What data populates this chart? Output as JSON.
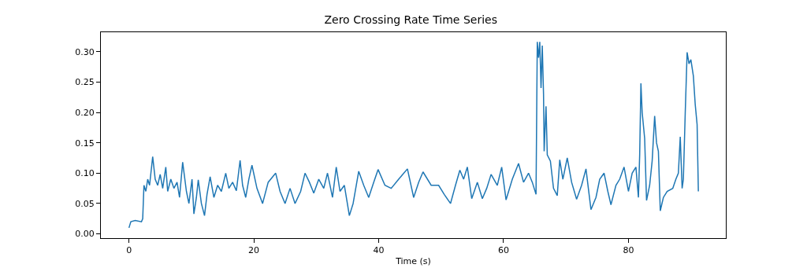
{
  "chart_data": {
    "type": "line",
    "title": "Zero Crossing Rate Time Series",
    "xlabel": "Time (s)",
    "x": [
      0,
      0.3,
      1,
      2,
      2.2,
      2.4,
      2.7,
      3,
      3.3,
      3.8,
      4.2,
      4.6,
      5.0,
      5.4,
      5.9,
      6.2,
      6.7,
      7.2,
      7.7,
      8.1,
      8.6,
      9.2,
      9.6,
      10.1,
      10.4,
      10.8,
      11.1,
      11.6,
      12.1,
      12.5,
      13.0,
      13.6,
      14.2,
      14.8,
      15.5,
      16.0,
      16.6,
      17.2,
      17.8,
      18.2,
      18.7,
      19.2,
      19.7,
      20.5,
      21.4,
      22.3,
      23.5,
      24.2,
      25.0,
      25.8,
      26.6,
      27.5,
      28.2,
      28.9,
      29.6,
      30.4,
      31.2,
      31.8,
      32.6,
      33.2,
      33.8,
      34.5,
      35.3,
      35.9,
      36.8,
      37.6,
      38.4,
      39.2,
      39.9,
      41.0,
      42.0,
      43.2,
      44.6,
      45.6,
      46.4,
      47.1,
      48.4,
      49.6,
      50.5,
      51.5,
      52.3,
      53.0,
      53.6,
      54.2,
      54.9,
      55.8,
      56.6,
      57.3,
      58.0,
      59.0,
      59.7,
      60.4,
      61.4,
      62.4,
      63.2,
      64.0,
      64.6,
      65.2,
      65.4,
      65.6,
      65.8,
      66.0,
      66.2,
      66.4,
      66.5,
      66.8,
      67.0,
      67.5,
      68.0,
      68.6,
      69.0,
      69.5,
      70.2,
      70.9,
      71.7,
      72.5,
      73.2,
      74.0,
      74.8,
      75.4,
      76.1,
      76.7,
      77.2,
      78.0,
      78.6,
      79.3,
      80.0,
      80.6,
      81.2,
      81.6,
      81.8,
      82.0,
      82.2,
      82.6,
      82.9,
      83.4,
      83.8,
      84.2,
      84.5,
      84.8,
      85.1,
      85.6,
      86.2,
      87.1,
      87.6,
      88.0,
      88.3,
      88.6,
      88.8,
      89.1,
      89.4,
      89.7,
      90.0,
      90.4,
      90.7,
      91.0,
      91.2
    ],
    "values": [
      0.01,
      0.02,
      0.022,
      0.02,
      0.025,
      0.08,
      0.07,
      0.09,
      0.08,
      0.127,
      0.09,
      0.08,
      0.098,
      0.075,
      0.11,
      0.07,
      0.09,
      0.075,
      0.085,
      0.06,
      0.118,
      0.07,
      0.05,
      0.09,
      0.033,
      0.06,
      0.089,
      0.05,
      0.03,
      0.065,
      0.094,
      0.06,
      0.08,
      0.07,
      0.1,
      0.075,
      0.085,
      0.071,
      0.121,
      0.08,
      0.06,
      0.09,
      0.113,
      0.075,
      0.05,
      0.085,
      0.1,
      0.07,
      0.05,
      0.075,
      0.05,
      0.07,
      0.1,
      0.085,
      0.067,
      0.09,
      0.075,
      0.1,
      0.06,
      0.11,
      0.07,
      0.08,
      0.03,
      0.05,
      0.103,
      0.08,
      0.06,
      0.085,
      0.106,
      0.08,
      0.075,
      0.09,
      0.107,
      0.06,
      0.085,
      0.102,
      0.08,
      0.08,
      0.065,
      0.05,
      0.08,
      0.105,
      0.09,
      0.11,
      0.058,
      0.085,
      0.058,
      0.075,
      0.098,
      0.08,
      0.11,
      0.056,
      0.09,
      0.116,
      0.085,
      0.1,
      0.085,
      0.065,
      0.316,
      0.29,
      0.316,
      0.24,
      0.31,
      0.23,
      0.136,
      0.21,
      0.13,
      0.12,
      0.075,
      0.063,
      0.122,
      0.09,
      0.125,
      0.085,
      0.057,
      0.08,
      0.107,
      0.04,
      0.06,
      0.09,
      0.1,
      0.07,
      0.048,
      0.08,
      0.09,
      0.11,
      0.07,
      0.1,
      0.11,
      0.06,
      0.13,
      0.248,
      0.2,
      0.157,
      0.055,
      0.08,
      0.12,
      0.194,
      0.15,
      0.136,
      0.038,
      0.06,
      0.07,
      0.075,
      0.09,
      0.1,
      0.16,
      0.075,
      0.09,
      0.2,
      0.299,
      0.28,
      0.287,
      0.26,
      0.213,
      0.18,
      0.07
    ],
    "color": "#1f77b4",
    "xlim": [
      -4.5,
      95.6
    ],
    "ylim": [
      -0.007,
      0.332
    ],
    "xticks": [
      0,
      20,
      40,
      60,
      80
    ],
    "yticks": [
      {
        "value": 0,
        "label": "0.00"
      },
      {
        "value": 0.05,
        "label": "0.05"
      },
      {
        "value": 0.1,
        "label": "0.10"
      },
      {
        "value": 0.15,
        "label": "0.15"
      },
      {
        "value": 0.2,
        "label": "0.20"
      },
      {
        "value": 0.25,
        "label": "0.25"
      },
      {
        "value": 0.3,
        "label": "0.30"
      }
    ],
    "grid": false,
    "marker": "none",
    "line_style": "solid"
  }
}
